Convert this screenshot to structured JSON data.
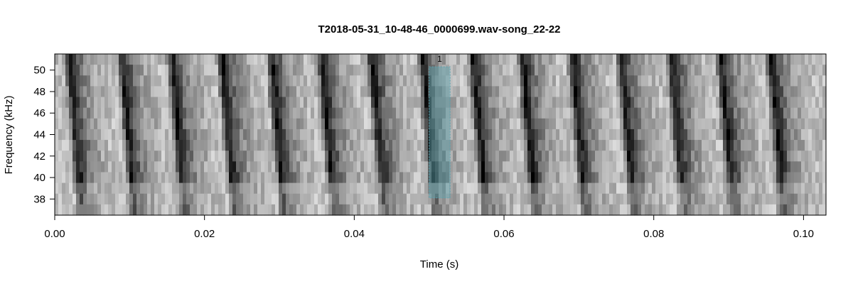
{
  "chart_data": {
    "type": "heatmap",
    "subtype": "spectrogram",
    "title": "T2018-05-31_10-48-46_0000699.wav-song_22-22",
    "xlabel": "Time (s)",
    "ylabel": "Frequency (kHz)",
    "xlim": [
      0.0,
      0.103
    ],
    "ylim": [
      36.5,
      51.5
    ],
    "x_ticks": [
      0.0,
      0.02,
      0.04,
      0.06,
      0.08,
      0.1
    ],
    "x_tick_labels": [
      "0.00",
      "0.02",
      "0.04",
      "0.06",
      "0.08",
      "0.10"
    ],
    "y_ticks": [
      38,
      40,
      42,
      44,
      46,
      48,
      50
    ],
    "y_tick_labels": [
      "38",
      "40",
      "42",
      "44",
      "46",
      "48",
      "50"
    ],
    "colormap": "grayscale (dark = high energy)",
    "pulse_times": [
      0.0028,
      0.0098,
      0.0165,
      0.0232,
      0.0298,
      0.0365,
      0.0432,
      0.05,
      0.0567,
      0.0633,
      0.07,
      0.0765,
      0.0832,
      0.0898,
      0.0965
    ],
    "selection": {
      "label": "1",
      "t_start": 0.05,
      "t_end": 0.0528,
      "f_low": 38.1,
      "f_high": 50.3,
      "color": "#5ba3b0"
    },
    "grid": false,
    "legend": "none"
  }
}
